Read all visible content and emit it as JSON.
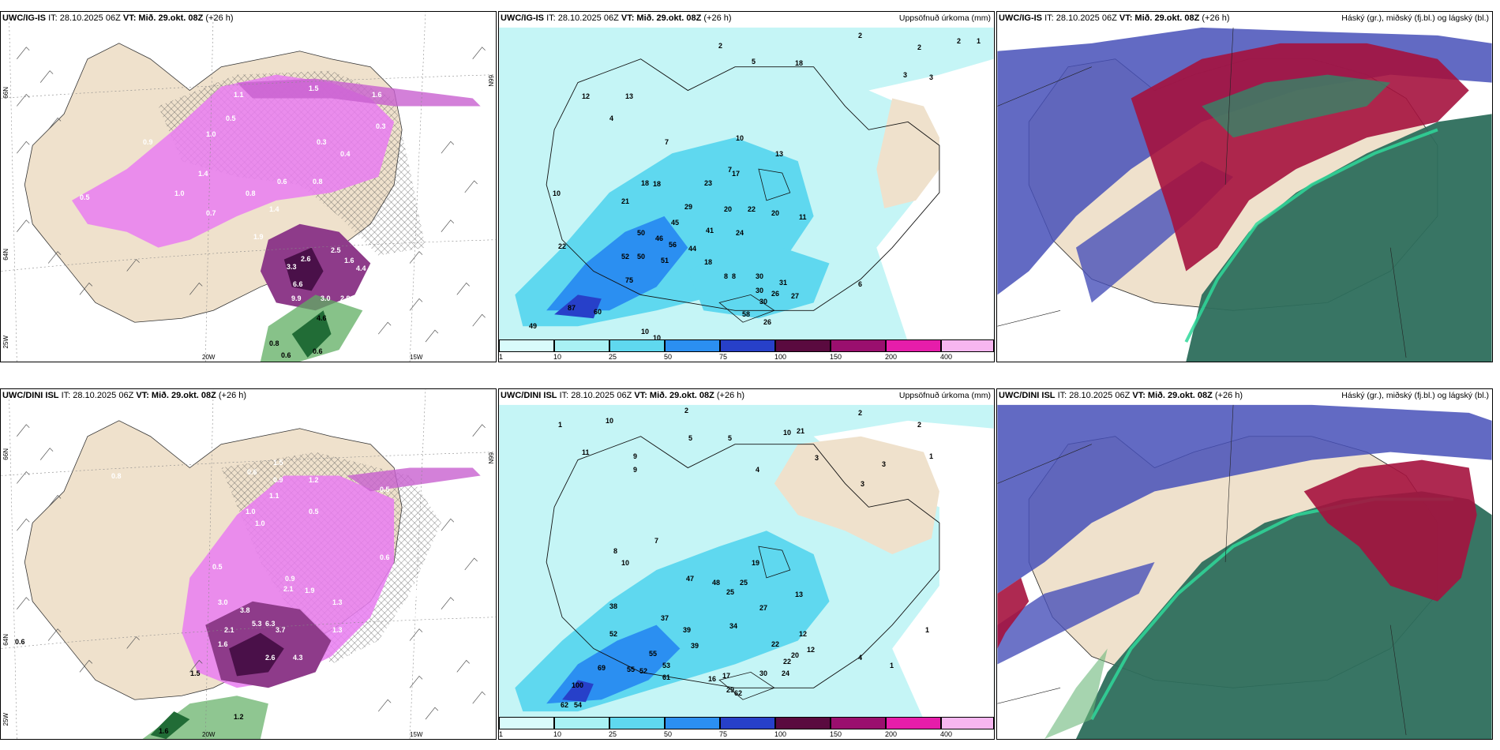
{
  "panels": {
    "p11": {
      "model_label": "UWC/IG-IS",
      "it_text": "IT: 28.10.2025 06Z",
      "vt_text": "VT: Mið. 29.okt. 08Z",
      "lead_text": "(+26 h)",
      "title_right": "",
      "values": [
        "1.1",
        "1.5",
        "1.6",
        "0.5",
        "1.0",
        "0.3",
        "0.4",
        "0.3",
        "0.8",
        "0.6",
        "0.8",
        "1.4",
        "1.9",
        "2.5",
        "3.3",
        "2.6",
        "1.6",
        "4.4",
        "6.6",
        "9.9",
        "3.0",
        "2.9",
        "4.6",
        "0.8",
        "0.6",
        "0.6",
        "0.3",
        "0.5",
        "1.0",
        "1.4",
        "0.7",
        "0.9"
      ],
      "axis_labels": [
        "66N",
        "66N",
        "64N",
        "25W",
        "20W",
        "15W"
      ]
    },
    "p12": {
      "model_label": "UWC/IG-IS",
      "it_text": "IT: 28.10.2025 06Z",
      "vt_text": "VT: Mið. 29.okt. 08Z",
      "lead_text": "(+26 h)",
      "title_right": "Uppsöfnuð úrkoma (mm)",
      "values": [
        "2",
        "5",
        "18",
        "13",
        "12",
        "10",
        "13",
        "4",
        "7",
        "10",
        "7",
        "18",
        "18",
        "21",
        "23",
        "17",
        "29",
        "45",
        "41",
        "20",
        "22",
        "20",
        "24",
        "11",
        "50",
        "46",
        "56",
        "44",
        "52",
        "50",
        "51",
        "18",
        "8",
        "8",
        "30",
        "30",
        "31",
        "30",
        "26",
        "27",
        "87",
        "60",
        "75",
        "58",
        "26",
        "49",
        "22",
        "6",
        "10",
        "10",
        "2",
        "2",
        "2",
        "3",
        "3",
        "1"
      ],
      "colorbar_ticks": [
        "1",
        "10",
        "25",
        "50",
        "75",
        "100",
        "150",
        "200",
        "400"
      ]
    },
    "p13": {
      "model_label": "UWC/IG-IS",
      "it_text": "IT: 28.10.2025 06Z",
      "vt_text": "VT: Mið. 29.okt. 08Z",
      "lead_text": "(+26 h)",
      "title_right": "Háský (gr.), miðský (fj.bl.) og lágský (bl.)"
    },
    "p21": {
      "model_label": "UWC/DINI ISL",
      "it_text": "IT: 28.10.2025 06Z",
      "vt_text": "VT: Mið. 29.okt. 08Z",
      "lead_text": "(+26 h)",
      "title_right": "",
      "values": [
        "0.6",
        "1.5",
        "0.9",
        "1.2",
        "1.1",
        "1.0",
        "0.5",
        "0.5",
        "1.0",
        "0.5",
        "0.6",
        "1.3",
        "0.9",
        "2.1",
        "1.9",
        "3.0",
        "3.8",
        "2.1",
        "1.6",
        "5.3",
        "6.3",
        "3.7",
        "2.6",
        "4.3",
        "1.3",
        "0.8",
        "0.3",
        "0.4",
        "2.1",
        "1.6",
        "1.5",
        "1.2",
        "1.6",
        "0.8",
        "0.6"
      ],
      "axis_labels": [
        "66N",
        "66N",
        "64N",
        "25W",
        "20W",
        "15W"
      ]
    },
    "p22": {
      "model_label": "UWC/DINI ISL",
      "it_text": "IT: 28.10.2025 06Z",
      "vt_text": "VT: Mið. 29.okt. 08Z",
      "lead_text": "(+26 h)",
      "title_right": "Uppsöfnuð úrkoma (mm)",
      "values": [
        "1",
        "2",
        "10",
        "11",
        "9",
        "9",
        "5",
        "5",
        "4",
        "10",
        "21",
        "3",
        "2",
        "2",
        "3",
        "3",
        "1",
        "10",
        "8",
        "7",
        "47",
        "48",
        "25",
        "25",
        "19",
        "13",
        "38",
        "37",
        "39",
        "39",
        "34",
        "27",
        "22",
        "22",
        "12",
        "52",
        "55",
        "53",
        "61",
        "30",
        "24",
        "20",
        "12",
        "69",
        "55",
        "52",
        "100",
        "16",
        "17",
        "29",
        "62",
        "62",
        "54",
        "4",
        "1",
        "1"
      ],
      "colorbar_ticks": [
        "1",
        "10",
        "25",
        "50",
        "75",
        "100",
        "150",
        "200",
        "400"
      ]
    },
    "p23": {
      "model_label": "UWC/DINI ISL",
      "it_text": "IT: 28.10.2025 06Z",
      "vt_text": "VT: Mið. 29.okt. 08Z",
      "lead_text": "(+26 h)",
      "title_right": "Háský (gr.), miðský (fj.bl.) og lágský (bl.)"
    }
  },
  "colorbar_colors": [
    "#d9fbfb",
    "#a9f1f4",
    "#5fd8ef",
    "#2b8ff1",
    "#2740c9",
    "#5a0a3f",
    "#9a0f6e",
    "#e61daa",
    "#f7b6f0"
  ],
  "colors": {
    "land": "#efe1cc",
    "precip_pink": "#e97cf1",
    "precip_purple": "#8e3b8a",
    "precip_dark": "#4a1049",
    "cloud_high": "#a5123e",
    "cloud_mid": "#2d8c6a",
    "cloud_low": "#4750b9"
  }
}
